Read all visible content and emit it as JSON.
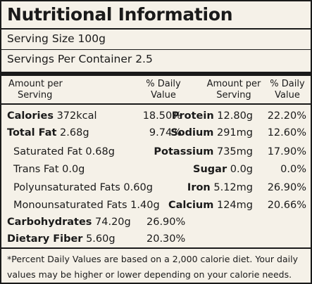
{
  "title": "Nutritional Information",
  "serving_size": "Serving Size 100g",
  "servings_per_container": "Servings Per Container 2.5",
  "headers": {
    "amount_per_serving_line1": "Amount per",
    "amount_per_serving_line2": "Serving",
    "daily_value_line1": "% Daily",
    "daily_value_line2": "Value"
  },
  "left_rows": [
    {
      "name": "Calories",
      "amount": "372kcal",
      "dv": "18.50%",
      "bold": true
    },
    {
      "name": "Total Fat",
      "amount": "2.68g",
      "dv": "9.74%",
      "bold": true
    },
    {
      "name": "Saturated Fat",
      "amount": "0.68g",
      "dv": "",
      "bold": false
    },
    {
      "name": "Trans Fat",
      "amount": "0.0g",
      "dv": "",
      "bold": false
    },
    {
      "name": "Polyunsaturated Fats",
      "amount": "0.60g",
      "dv": "",
      "bold": false
    },
    {
      "name": "Monounsaturated Fats",
      "amount": "1.40g",
      "dv": "",
      "bold": false
    },
    {
      "name": "Carbohydrates",
      "amount": "74.20g",
      "dv": "26.90%",
      "bold": true
    },
    {
      "name": "Dietary Fiber",
      "amount": "5.60g",
      "dv": "20.30%",
      "bold": true
    }
  ],
  "right_rows": [
    {
      "name": "Protein",
      "amount": "12.80g",
      "dv": "22.20%"
    },
    {
      "name": "Sodium",
      "amount": "291mg",
      "dv": "12.60%"
    },
    {
      "name": "Potassium",
      "amount": "735mg",
      "dv": "17.90%"
    },
    {
      "name": "Sugar",
      "amount": "0.0g",
      "dv": "0.0%"
    },
    {
      "name": "Iron",
      "amount": "5.12mg",
      "dv": "26.90%"
    },
    {
      "name": "Calcium",
      "amount": "124mg",
      "dv": "20.66%"
    }
  ],
  "footnote": "*Percent Daily Values are based on a 2,000 calorie diet. Your daily values may be higher or lower depending on your calorie needs."
}
